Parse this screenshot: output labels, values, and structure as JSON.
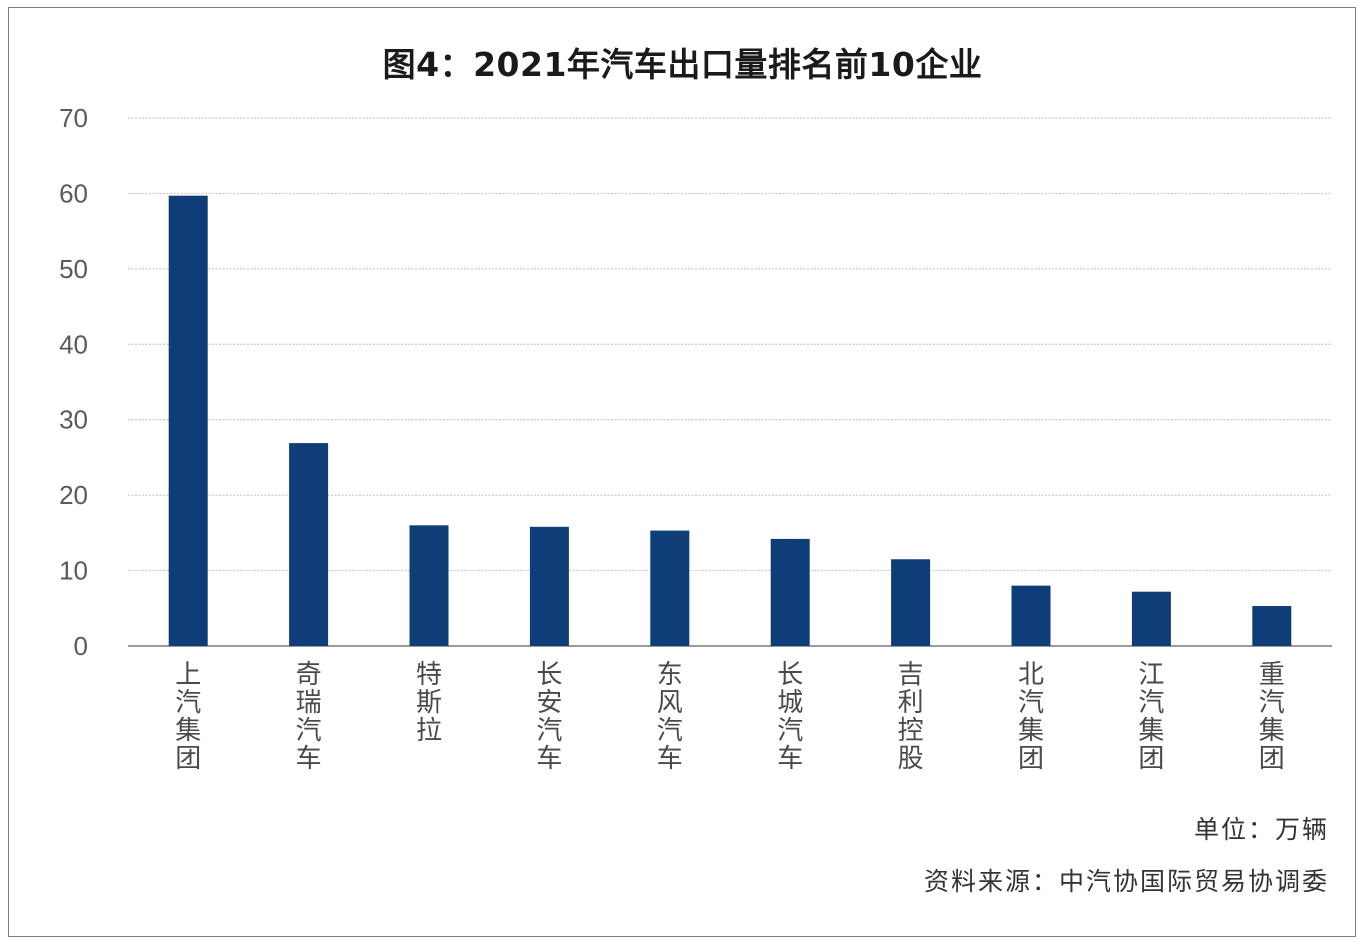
{
  "chart_data": {
    "type": "bar",
    "title": "图4：2021年汽车出口量排名前10企业",
    "categories": [
      "上汽集团",
      "奇瑞汽车",
      "特斯拉",
      "长安汽车",
      "东风汽车",
      "长城汽车",
      "吉利控股",
      "北汽集团",
      "江汽集团",
      "重汽集团"
    ],
    "values": [
      59.7,
      26.9,
      16.0,
      15.8,
      15.3,
      14.2,
      11.5,
      8.0,
      7.2,
      5.3
    ],
    "ylim": [
      0,
      70
    ],
    "yticks": [
      0,
      10,
      20,
      30,
      40,
      50,
      60,
      70
    ],
    "grid": true,
    "bar_color": "#0e3d78",
    "unit_note": "单位：万辆",
    "source_note": "资料来源：中汽协国际贸易协调委"
  }
}
